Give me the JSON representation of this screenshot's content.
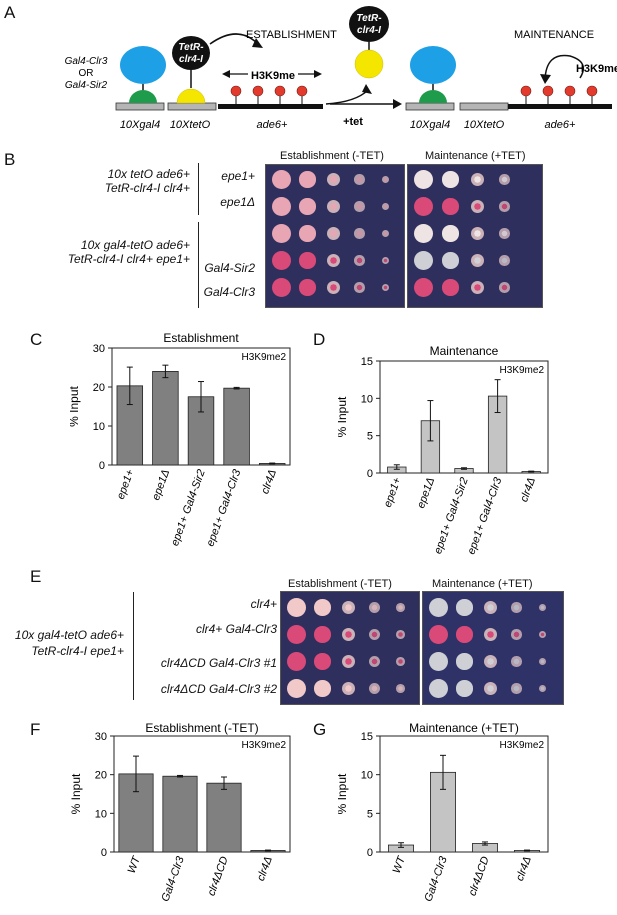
{
  "panels": {
    "A": "A",
    "B": "B",
    "C": "C",
    "D": "D",
    "E": "E",
    "F": "F",
    "G": "G"
  },
  "panelA": {
    "left_tether_label_1": "Gal4-Clr3",
    "left_tether_label_2": "OR",
    "left_tether_label_3": "Gal4-Sir2",
    "tetr_label_1": "TetR-",
    "tetr_label_2": "clr4-I",
    "establishment": "ESTABLISHMENT",
    "maintenance": "MAINTENANCE",
    "h3k9me": "H3K9me",
    "plus_tet": "+tet",
    "locus_left": [
      "10Xgal4",
      "10XtetO",
      "ade6+"
    ],
    "locus_right": [
      "10Xgal4",
      "10XtetO",
      "ade6+"
    ],
    "colors": {
      "blue": "#1ea0e6",
      "green": "#1f9c4b",
      "yellow": "#f5e600",
      "black": "#111111",
      "red": "#e23b2e",
      "grey": "#b5b5b5"
    }
  },
  "panelB": {
    "header_est": "Establishment (-TET)",
    "header_maint": "Maintenance (+TET)",
    "group1_line1": "10x tetO ade6+",
    "group1_line2": "TetR-clr4-I clr4+",
    "group2_line1": "10x gal4-tetO ade6+",
    "group2_line2": "TetR-clr4-I clr4+ epe1+",
    "rows": [
      "epe1+",
      "epe1Δ",
      "",
      "Gal4-Sir2",
      "Gal4-Clr3"
    ]
  },
  "panelE": {
    "header_est": "Establishment (-TET)",
    "header_maint": "Maintenance (+TET)",
    "group_line1": "10x gal4-tetO ade6+",
    "group_line2": "TetR-clr4-I epe1+",
    "rows": [
      "clr4+",
      "clr4+ Gal4-Clr3",
      "clr4ΔCD Gal4-Clr3 #1",
      "clr4ΔCD Gal4-Clr3 #2"
    ]
  },
  "chart_data": [
    {
      "panel": "C",
      "type": "bar",
      "title": "Establishment",
      "annotation": "H3K9me2",
      "ylabel": "% Input",
      "categories": [
        "epe1+",
        "epe1Δ",
        "epe1+ Gal4-Sir2",
        "epe1+ Gal4-Clr3",
        "clr4Δ"
      ],
      "values": [
        20.3,
        24.0,
        17.5,
        19.7,
        0.4
      ],
      "errors": [
        4.8,
        1.6,
        3.9,
        0.2,
        0.1
      ],
      "ylim": [
        0,
        30
      ],
      "yticks": [
        0,
        10,
        20,
        30
      ],
      "bar_color": "#808080"
    },
    {
      "panel": "D",
      "type": "bar",
      "title": "Maintenance",
      "annotation": "H3K9me2",
      "ylabel": "% Input",
      "categories": [
        "epe1+",
        "epe1Δ",
        "epe1+ Gal4-Sir2",
        "epe1+ Gal4-Clr3",
        "clr4Δ"
      ],
      "values": [
        0.8,
        7.0,
        0.6,
        10.3,
        0.2
      ],
      "errors": [
        0.3,
        2.7,
        0.1,
        2.2,
        0.05
      ],
      "ylim": [
        0,
        15
      ],
      "yticks": [
        0,
        5,
        10,
        15
      ],
      "bar_color": "#c4c4c4"
    },
    {
      "panel": "F",
      "type": "bar",
      "title": "Establishment (-TET)",
      "annotation": "H3K9me2",
      "ylabel": "% Input",
      "categories": [
        "WT",
        "Gal4-Clr3",
        "clr4ΔCD",
        "clr4Δ"
      ],
      "values": [
        20.2,
        19.6,
        17.8,
        0.4
      ],
      "errors": [
        4.6,
        0.2,
        1.6,
        0.1
      ],
      "ylim": [
        0,
        30
      ],
      "yticks": [
        0,
        10,
        20,
        30
      ],
      "bar_color": "#808080"
    },
    {
      "panel": "G",
      "type": "bar",
      "title": "Maintenance (+TET)",
      "annotation": "H3K9me2",
      "ylabel": "% Input",
      "categories": [
        "WT",
        "Gal4-Clr3",
        "clr4ΔCD",
        "clr4Δ"
      ],
      "values": [
        0.9,
        10.3,
        1.1,
        0.2
      ],
      "errors": [
        0.3,
        2.2,
        0.2,
        0.05
      ],
      "ylim": [
        0,
        15
      ],
      "yticks": [
        0,
        5,
        10,
        15
      ],
      "bar_color": "#c4c4c4"
    }
  ]
}
